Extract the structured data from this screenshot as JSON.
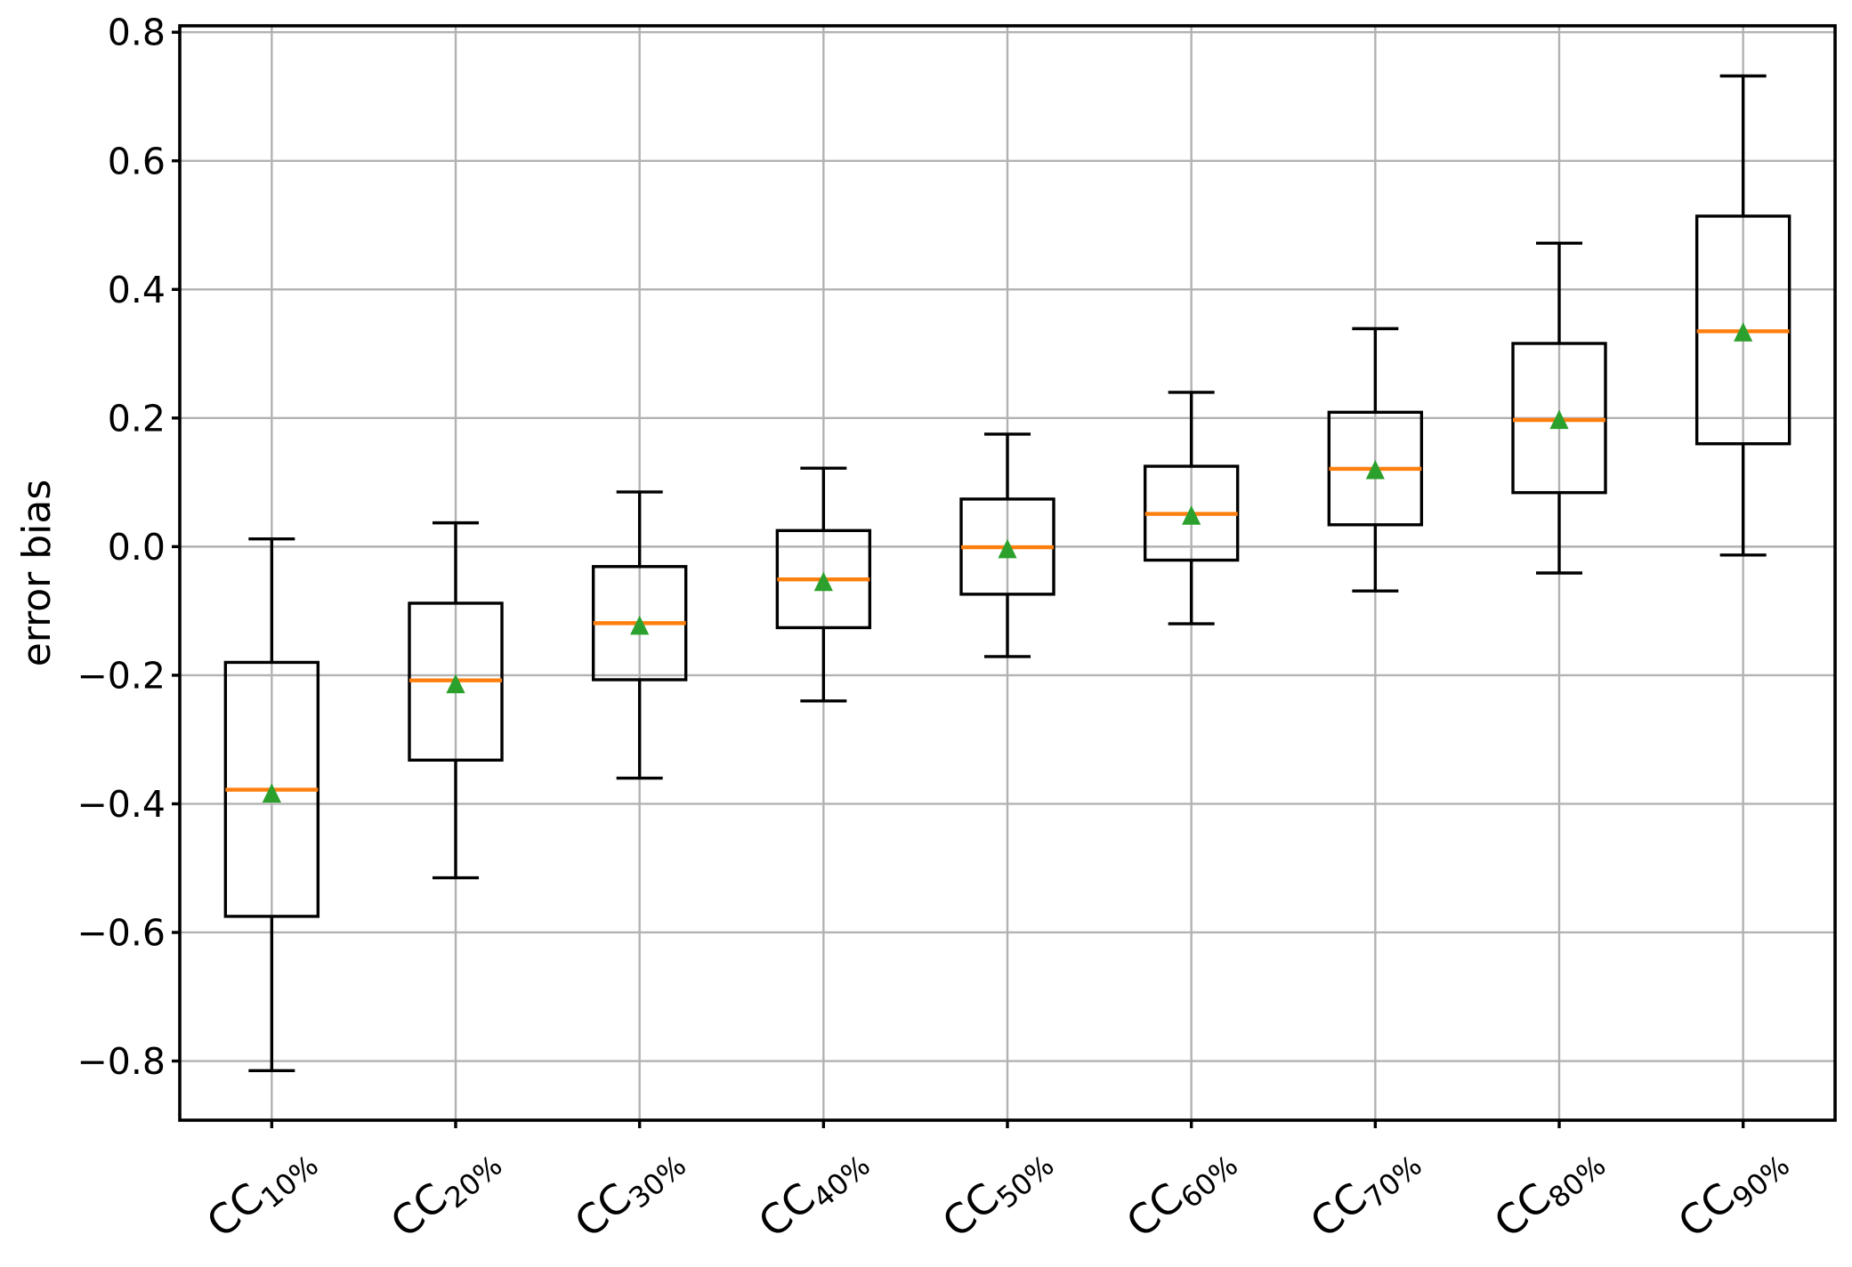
{
  "chart_data": {
    "type": "box",
    "title": "",
    "xlabel": "",
    "ylabel": "error bias",
    "grid": true,
    "legend": false,
    "ylim": [
      -0.892,
      0.81
    ],
    "xlim": [
      0.5,
      9.5
    ],
    "yticks": [
      0.8,
      0.6,
      0.4,
      0.2,
      0.0,
      -0.2,
      -0.4,
      -0.6,
      -0.8
    ],
    "ytick_labels": [
      "0.8",
      "0.6",
      "0.4",
      "0.2",
      "0.0",
      "−0.2",
      "−0.4",
      "−0.6",
      "−0.8"
    ],
    "categories": [
      {
        "base": "CC",
        "sub": "10%"
      },
      {
        "base": "CC",
        "sub": "20%"
      },
      {
        "base": "CC",
        "sub": "30%"
      },
      {
        "base": "CC",
        "sub": "40%"
      },
      {
        "base": "CC",
        "sub": "50%"
      },
      {
        "base": "CC",
        "sub": "60%"
      },
      {
        "base": "CC",
        "sub": "70%"
      },
      {
        "base": "CC",
        "sub": "80%"
      },
      {
        "base": "CC",
        "sub": "90%"
      }
    ],
    "boxes": [
      {
        "label": "CC10%",
        "whislo": -0.815,
        "q1": -0.575,
        "med": -0.378,
        "mean": -0.383,
        "q3": -0.18,
        "whishi": 0.012
      },
      {
        "label": "CC20%",
        "whislo": -0.515,
        "q1": -0.332,
        "med": -0.208,
        "mean": -0.213,
        "q3": -0.088,
        "whishi": 0.037
      },
      {
        "label": "CC30%",
        "whislo": -0.36,
        "q1": -0.207,
        "med": -0.119,
        "mean": -0.122,
        "q3": -0.031,
        "whishi": 0.085
      },
      {
        "label": "CC40%",
        "whislo": -0.24,
        "q1": -0.126,
        "med": -0.051,
        "mean": -0.054,
        "q3": 0.025,
        "whishi": 0.122
      },
      {
        "label": "CC50%",
        "whislo": -0.171,
        "q1": -0.074,
        "med": -0.001,
        "mean": -0.003,
        "q3": 0.074,
        "whishi": 0.175
      },
      {
        "label": "CC60%",
        "whislo": -0.12,
        "q1": -0.021,
        "med": 0.051,
        "mean": 0.049,
        "q3": 0.125,
        "whishi": 0.24
      },
      {
        "label": "CC70%",
        "whislo": -0.069,
        "q1": 0.034,
        "med": 0.121,
        "mean": 0.12,
        "q3": 0.209,
        "whishi": 0.339
      },
      {
        "label": "CC80%",
        "whislo": -0.041,
        "q1": 0.084,
        "med": 0.197,
        "mean": 0.198,
        "q3": 0.316,
        "whishi": 0.472
      },
      {
        "label": "CC90%",
        "whislo": -0.013,
        "q1": 0.16,
        "med": 0.335,
        "mean": 0.334,
        "q3": 0.514,
        "whishi": 0.732
      }
    ],
    "mean_marker": "triangle-up",
    "colors": {
      "median": "#ff7f0e",
      "mean": "#2ca02c",
      "box_edge": "#000000",
      "whisker": "#000000",
      "grid": "#b2b2b2",
      "spine": "#000000",
      "text": "#000000",
      "background": "#ffffff"
    }
  }
}
